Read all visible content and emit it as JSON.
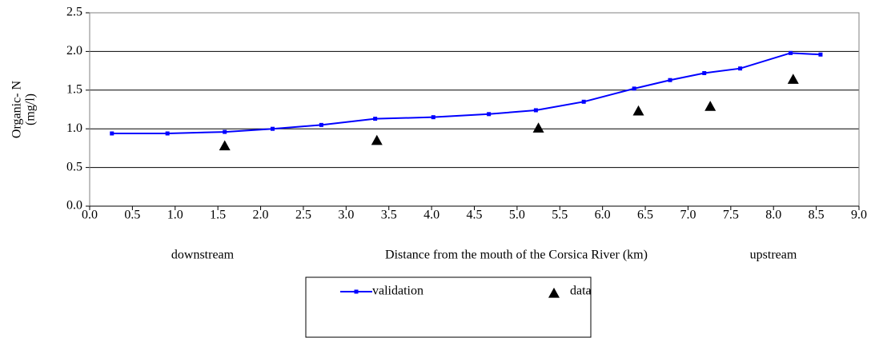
{
  "chart_data": {
    "type": "line",
    "ylabel": [
      "Organic- N",
      "(mg/l)"
    ],
    "annotations": [
      "downstream",
      "Distance from the mouth of the Corsica River (km)",
      "upstream"
    ],
    "series": [
      {
        "name": "validation",
        "color": "#0000ff",
        "style": "line",
        "x": [
          0.26,
          0.91,
          1.58,
          2.14,
          2.71,
          3.34,
          4.02,
          4.67,
          5.22,
          5.78,
          6.37,
          6.79,
          7.19,
          7.61,
          8.2,
          8.55
        ],
        "values": [
          0.94,
          0.94,
          0.96,
          1.0,
          1.05,
          1.13,
          1.15,
          1.19,
          1.24,
          1.35,
          1.52,
          1.63,
          1.72,
          1.78,
          1.98,
          1.96
        ]
      },
      {
        "name": "data",
        "color": "#000000",
        "style": "scatter",
        "x": [
          1.58,
          3.36,
          5.25,
          6.42,
          7.26,
          8.23
        ],
        "values": [
          0.78,
          0.85,
          1.01,
          1.23,
          1.29,
          1.64
        ]
      }
    ],
    "xlim": [
      0,
      9
    ],
    "ylim": [
      0,
      2.5
    ],
    "xticks": [
      {
        "value": 0,
        "label": "0.0"
      },
      0.5,
      {
        "value": 1,
        "label": "1.0"
      },
      1.5,
      {
        "value": 2,
        "label": "2.0"
      },
      2.5,
      {
        "value": 3,
        "label": "3.0"
      },
      3.5,
      {
        "value": 4,
        "label": "4.0"
      },
      4.5,
      {
        "value": 5,
        "label": "5.0"
      },
      5.5,
      {
        "value": 6,
        "label": "6.0"
      },
      6.5,
      {
        "value": 7,
        "label": "7.0"
      },
      7.5,
      {
        "value": 8,
        "label": "8.0"
      },
      8.5,
      {
        "value": 9,
        "label": "9.0"
      }
    ],
    "yticks": [
      {
        "value": 0,
        "label": "0.0"
      },
      0.5,
      {
        "value": 1,
        "label": "1.0"
      },
      1.5,
      {
        "value": 2,
        "label": "2.0"
      },
      2.5
    ],
    "grid": true
  }
}
